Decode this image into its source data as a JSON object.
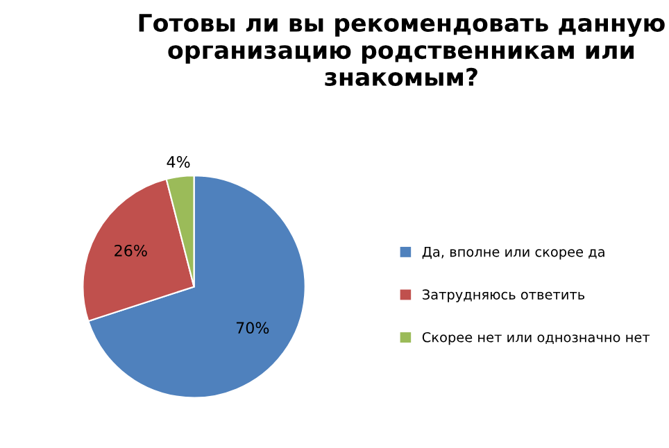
{
  "chart_data": {
    "type": "pie",
    "title": "Готовы ли вы рекомендовать данную организацию родственникам или знакомым?",
    "categories": [
      "Да, вполне или скорее да",
      "Затрудняюсь ответить",
      "Скорее нет или однозначно нет"
    ],
    "values": [
      70,
      26,
      4
    ],
    "colors": [
      "#4f81bd",
      "#c0504d",
      "#9bbb59"
    ],
    "value_labels": [
      "70%",
      "26%",
      "4%"
    ],
    "legend": "right"
  }
}
